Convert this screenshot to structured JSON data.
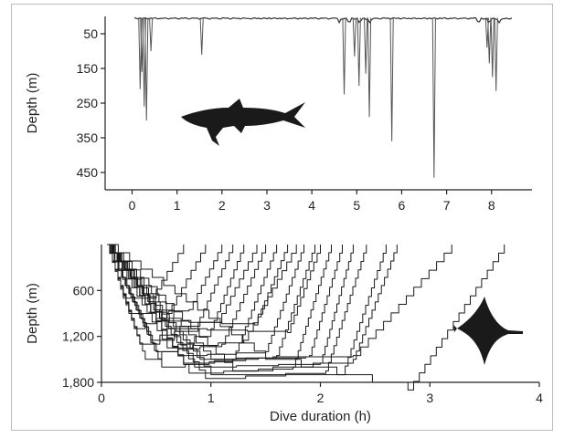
{
  "chart_data": [
    {
      "type": "line",
      "ylabel": "Depth (m)",
      "xlabel": "",
      "xlim": [
        -0.6,
        8.9
      ],
      "ylim": [
        500,
        0
      ],
      "y_inverted": true,
      "xticks": [
        "0",
        "1",
        "2",
        "3",
        "4",
        "5",
        "6",
        "7",
        "8"
      ],
      "yticks": [
        "50",
        "150",
        "250",
        "350",
        "450"
      ],
      "ytick_values": [
        50,
        150,
        250,
        350,
        450
      ],
      "silhouette_icon": "shark-icon",
      "dives": [
        {
          "x": 0.18,
          "depth": 210
        },
        {
          "x": 0.22,
          "depth": 160
        },
        {
          "x": 0.27,
          "depth": 260
        },
        {
          "x": 0.32,
          "depth": 300
        },
        {
          "x": 0.42,
          "depth": 100
        },
        {
          "x": 1.55,
          "depth": 110
        },
        {
          "x": 4.72,
          "depth": 225
        },
        {
          "x": 4.95,
          "depth": 115
        },
        {
          "x": 5.05,
          "depth": 200
        },
        {
          "x": 5.2,
          "depth": 165
        },
        {
          "x": 5.28,
          "depth": 290
        },
        {
          "x": 5.78,
          "depth": 360
        },
        {
          "x": 6.72,
          "depth": 465
        },
        {
          "x": 7.9,
          "depth": 90
        },
        {
          "x": 7.95,
          "depth": 135
        },
        {
          "x": 8.02,
          "depth": 175
        },
        {
          "x": 8.1,
          "depth": 215
        }
      ]
    },
    {
      "type": "line",
      "xlabel": "Dive duration (h)",
      "ylabel": "Depth (m)",
      "xlim": [
        0,
        4
      ],
      "ylim": [
        1800,
        0
      ],
      "y_inverted": true,
      "xticks": [
        "0",
        "1",
        "2",
        "3",
        "4"
      ],
      "yticks": [
        "600",
        "1,200",
        "1,800"
      ],
      "ytick_values": [
        600,
        1200,
        1800
      ],
      "silhouette_icon": "manta-ray-icon",
      "series": [
        {
          "x": [
            0.05,
            0.2,
            0.45,
            0.75
          ],
          "y": [
            0,
            700,
            700,
            0
          ]
        },
        {
          "x": [
            0.05,
            0.3,
            0.6,
            0.95
          ],
          "y": [
            0,
            1100,
            900,
            0
          ]
        },
        {
          "x": [
            0.05,
            0.25,
            0.8,
            1.1
          ],
          "y": [
            0,
            900,
            850,
            0
          ]
        },
        {
          "x": [
            0.05,
            0.35,
            0.9,
            1.2
          ],
          "y": [
            0,
            1300,
            950,
            0
          ]
        },
        {
          "x": [
            0.05,
            0.4,
            1.0,
            1.3
          ],
          "y": [
            0,
            1500,
            1100,
            0
          ]
        },
        {
          "x": [
            0.05,
            0.45,
            1.1,
            1.42
          ],
          "y": [
            0,
            1250,
            900,
            0
          ]
        },
        {
          "x": [
            0.05,
            0.5,
            1.1,
            1.5
          ],
          "y": [
            0,
            1400,
            1300,
            0
          ]
        },
        {
          "x": [
            0.05,
            0.55,
            1.2,
            1.6
          ],
          "y": [
            0,
            1600,
            1500,
            0
          ]
        },
        {
          "x": [
            0.05,
            0.5,
            1.4,
            1.7
          ],
          "y": [
            0,
            1000,
            1050,
            0
          ]
        },
        {
          "x": [
            0.05,
            0.6,
            1.3,
            1.78
          ],
          "y": [
            0,
            1350,
            1250,
            0
          ]
        },
        {
          "x": [
            0.05,
            0.7,
            1.5,
            1.85
          ],
          "y": [
            0,
            1450,
            1400,
            0
          ]
        },
        {
          "x": [
            0.05,
            0.75,
            1.6,
            1.95
          ],
          "y": [
            0,
            1550,
            1450,
            0
          ]
        },
        {
          "x": [
            0.05,
            0.6,
            1.7,
            2.0
          ],
          "y": [
            0,
            1100,
            1150,
            0
          ]
        },
        {
          "x": [
            0.05,
            0.8,
            1.75,
            2.1
          ],
          "y": [
            0,
            1680,
            1600,
            0
          ]
        },
        {
          "x": [
            0.05,
            0.9,
            1.9,
            2.2
          ],
          "y": [
            0,
            1500,
            1450,
            0
          ]
        },
        {
          "x": [
            0.05,
            0.85,
            2.0,
            2.3
          ],
          "y": [
            0,
            1600,
            1550,
            0
          ]
        },
        {
          "x": [
            0.05,
            0.95,
            2.05,
            2.42
          ],
          "y": [
            0,
            1750,
            1650,
            0
          ]
        },
        {
          "x": [
            0.05,
            1.0,
            2.2,
            2.6
          ],
          "y": [
            0,
            1700,
            1700,
            0
          ]
        },
        {
          "x": [
            0.05,
            1.2,
            2.3,
            2.7
          ],
          "y": [
            0,
            1650,
            1500,
            0
          ]
        },
        {
          "x": [
            0.05,
            1.0,
            2.3,
            3.2
          ],
          "y": [
            0,
            1500,
            1450,
            0
          ]
        },
        {
          "x": [
            0.05,
            1.5,
            2.8,
            3.68
          ],
          "y": [
            0,
            1500,
            1900,
            0
          ]
        }
      ]
    }
  ]
}
